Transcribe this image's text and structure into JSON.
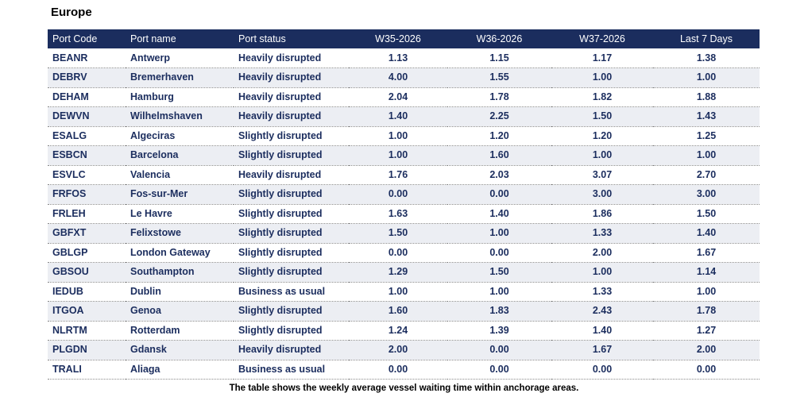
{
  "section_title": "Europe",
  "table": {
    "headers": [
      "Port Code",
      "Port name",
      "Port status",
      "W35-2026",
      "W36-2026",
      "W37-2026",
      "Last 7 Days"
    ],
    "rows": [
      [
        "BEANR",
        "Antwerp",
        "Heavily disrupted",
        "1.13",
        "1.15",
        "1.17",
        "1.38"
      ],
      [
        "DEBRV",
        "Bremerhaven",
        "Heavily disrupted",
        "4.00",
        "1.55",
        "1.00",
        "1.00"
      ],
      [
        "DEHAM",
        "Hamburg",
        "Heavily disrupted",
        "2.04",
        "1.78",
        "1.82",
        "1.88"
      ],
      [
        "DEWVN",
        "Wilhelmshaven",
        "Heavily disrupted",
        "1.40",
        "2.25",
        "1.50",
        "1.43"
      ],
      [
        "ESALG",
        "Algeciras",
        "Slightly disrupted",
        "1.00",
        "1.20",
        "1.20",
        "1.25"
      ],
      [
        "ESBCN",
        "Barcelona",
        "Slightly disrupted",
        "1.00",
        "1.60",
        "1.00",
        "1.00"
      ],
      [
        "ESVLC",
        "Valencia",
        "Heavily disrupted",
        "1.76",
        "2.03",
        "3.07",
        "2.70"
      ],
      [
        "FRFOS",
        "Fos-sur-Mer",
        "Slightly disrupted",
        "0.00",
        "0.00",
        "3.00",
        "3.00"
      ],
      [
        "FRLEH",
        "Le Havre",
        "Slightly disrupted",
        "1.63",
        "1.40",
        "1.86",
        "1.50"
      ],
      [
        "GBFXT",
        "Felixstowe",
        "Slightly disrupted",
        "1.50",
        "1.00",
        "1.33",
        "1.40"
      ],
      [
        "GBLGP",
        "London Gateway",
        "Slightly disrupted",
        "0.00",
        "0.00",
        "2.00",
        "1.67"
      ],
      [
        "GBSOU",
        "Southampton",
        "Slightly disrupted",
        "1.29",
        "1.50",
        "1.00",
        "1.14"
      ],
      [
        "IEDUB",
        "Dublin",
        "Business as usual",
        "1.00",
        "1.00",
        "1.33",
        "1.00"
      ],
      [
        "ITGOA",
        "Genoa",
        "Slightly disrupted",
        "1.60",
        "1.83",
        "2.43",
        "1.78"
      ],
      [
        "NLRTM",
        "Rotterdam",
        "Slightly disrupted",
        "1.24",
        "1.39",
        "1.40",
        "1.27"
      ],
      [
        "PLGDN",
        "Gdansk",
        "Heavily disrupted",
        "2.00",
        "0.00",
        "1.67",
        "2.00"
      ],
      [
        "TRALI",
        "Aliaga",
        "Business as usual",
        "0.00",
        "0.00",
        "0.00",
        "0.00"
      ]
    ]
  },
  "caption": "The table shows the weekly average vessel waiting time within anchorage areas.",
  "colors": {
    "header_bg": "#1b2d5e",
    "header_text": "#ffffff",
    "cell_text": "#1b2d5e",
    "alt_row_bg": "#eceef3"
  }
}
